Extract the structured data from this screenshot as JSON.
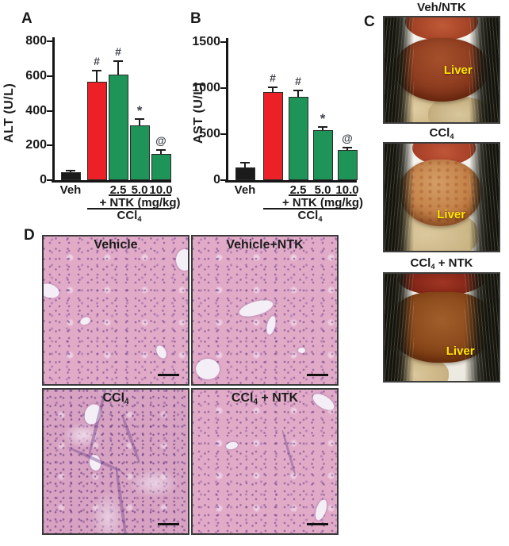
{
  "panels": {
    "a_label": "A",
    "b_label": "B",
    "c_label": "C",
    "d_label": "D"
  },
  "colors": {
    "control_bar": "#1B1B1B",
    "ccl4_bar": "#EB2127",
    "ntk_bar": "#1E9458",
    "liver_annotation": "#FFE600",
    "histology_base": "#E1ABC8"
  },
  "chart_data": [
    {
      "type": "bar",
      "panel": "A",
      "title": "",
      "xlabel": "",
      "ylabel": "ALT (U/L)",
      "ylim": [
        0,
        800
      ],
      "yticks": [
        0,
        200,
        400,
        600,
        800
      ],
      "categories": [
        "Veh",
        "CCl4",
        "CCl4 + NTK 2.5 mg/kg",
        "CCl4 + NTK 5.0 mg/kg",
        "CCl4 + NTK 10.0 mg/kg"
      ],
      "bars": [
        {
          "label": "Veh",
          "value": 45,
          "error": 15,
          "color": "#1B1B1B",
          "marker": ""
        },
        {
          "label": "",
          "value": 565,
          "error": 70,
          "color": "#EB2127",
          "marker": "#"
        },
        {
          "label": "2.5",
          "value": 610,
          "error": 80,
          "color": "#1E9458",
          "marker": "#"
        },
        {
          "label": "5.0",
          "value": 315,
          "error": 40,
          "color": "#1E9458",
          "marker": "*"
        },
        {
          "label": "10.0",
          "value": 150,
          "error": 30,
          "color": "#1E9458",
          "marker": "@"
        }
      ],
      "group_ntk": "+ NTK (mg/kg)",
      "group_ccl4_pre": "CCl",
      "group_ccl4_sub": "4",
      "legend": "none",
      "grid": false
    },
    {
      "type": "bar",
      "panel": "B",
      "title": "",
      "xlabel": "",
      "ylabel": "AST (U/L)",
      "ylim": [
        0,
        1500
      ],
      "yticks": [
        0,
        500,
        1000,
        1500
      ],
      "categories": [
        "Veh",
        "CCl4",
        "CCl4 + NTK 2.5 mg/kg",
        "CCl4 + NTK 5.0 mg/kg",
        "CCl4 + NTK 10.0 mg/kg"
      ],
      "bars": [
        {
          "label": "Veh",
          "value": 140,
          "error": 55,
          "color": "#1B1B1B",
          "marker": ""
        },
        {
          "label": "",
          "value": 955,
          "error": 65,
          "color": "#EB2127",
          "marker": "#"
        },
        {
          "label": "2.5",
          "value": 905,
          "error": 75,
          "color": "#1E9458",
          "marker": "#"
        },
        {
          "label": "5.0",
          "value": 545,
          "error": 45,
          "color": "#1E9458",
          "marker": "*"
        },
        {
          "label": "10.0",
          "value": 330,
          "error": 35,
          "color": "#1E9458",
          "marker": "@"
        }
      ],
      "group_ntk": "+ NTK (mg/kg)",
      "group_ccl4_pre": "CCl",
      "group_ccl4_sub": "4",
      "legend": "none",
      "grid": false
    }
  ],
  "panel_c": {
    "photos": [
      {
        "title_pre": "Veh/NTK",
        "title_sub": "",
        "title_post": "",
        "annotation": "Liver"
      },
      {
        "title_pre": "CCl",
        "title_sub": "4",
        "title_post": "",
        "annotation": "Liver"
      },
      {
        "title_pre": "CCl",
        "title_sub": "4",
        "title_post": " + NTK",
        "annotation": "Liver"
      }
    ]
  },
  "panel_d": {
    "images": [
      {
        "title_pre": "Vehicle",
        "title_sub": "",
        "title_post": ""
      },
      {
        "title_pre": "Vehicle+NTK",
        "title_sub": "",
        "title_post": ""
      },
      {
        "title_pre": "CCl",
        "title_sub": "4",
        "title_post": ""
      },
      {
        "title_pre": "CCl",
        "title_sub": "4",
        "title_post": " + NTK"
      }
    ]
  }
}
